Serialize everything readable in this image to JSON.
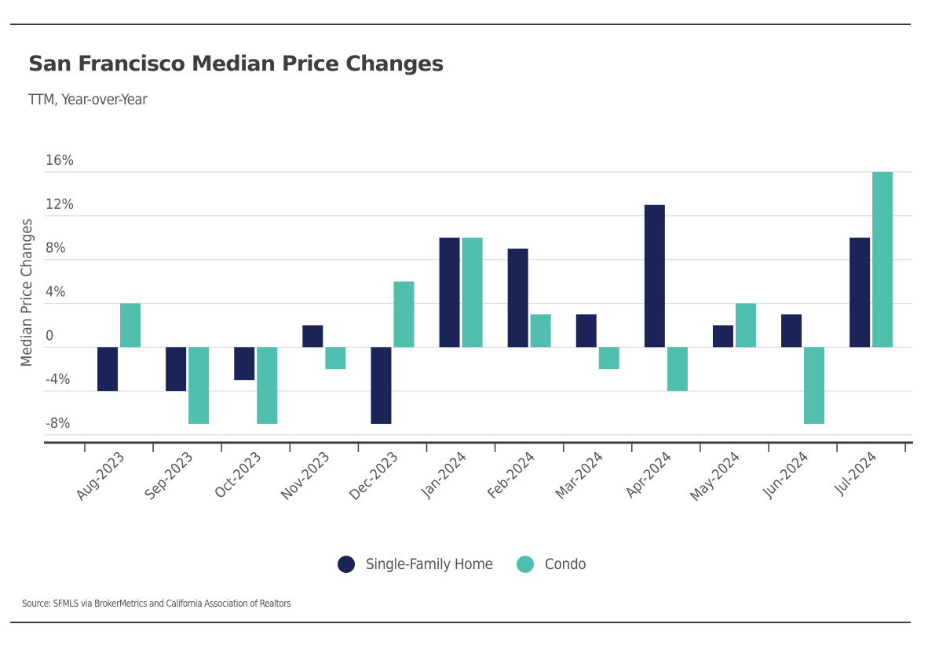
{
  "header": {
    "title": "San Francisco Median Price Changes",
    "subtitle": "TTM, Year-over-Year"
  },
  "legend": [
    {
      "label": "Single-Family Home",
      "color": "#1a2456"
    },
    {
      "label": "Condo",
      "color": "#50bfad"
    }
  ],
  "source": "Source:  SFMLS via BrokerMetrics and California Association of Realtors",
  "chart_data": {
    "type": "bar",
    "title": "San Francisco Median Price Changes",
    "subtitle": "TTM, Year-over-Year",
    "xlabel": "",
    "ylabel": "Median Price Changes",
    "ylim": [
      -8,
      16
    ],
    "yticks": [
      16,
      12,
      8,
      4,
      0,
      -4,
      -8
    ],
    "ytick_labels": [
      "16%",
      "12%",
      "8%",
      "4%",
      "0",
      "-4%",
      "-8%"
    ],
    "grid": true,
    "legend_position": "bottom-center",
    "categories": [
      "Aug-2023",
      "Sep-2023",
      "Oct-2023",
      "Nov-2023",
      "Dec-2023",
      "Jan-2024",
      "Feb-2024",
      "Mar-2024",
      "Apr-2024",
      "May-2024",
      "Jun-2024",
      "Jul-2024"
    ],
    "series": [
      {
        "name": "Single-Family Home",
        "color": "#1a2456",
        "values": [
          -4,
          -4,
          -3,
          2,
          -7,
          10,
          9,
          3,
          13,
          2,
          3,
          10
        ]
      },
      {
        "name": "Condo",
        "color": "#50bfad",
        "values": [
          4,
          -7,
          -7,
          -2,
          6,
          10,
          3,
          -2,
          -4,
          4,
          -7,
          16
        ]
      }
    ]
  }
}
